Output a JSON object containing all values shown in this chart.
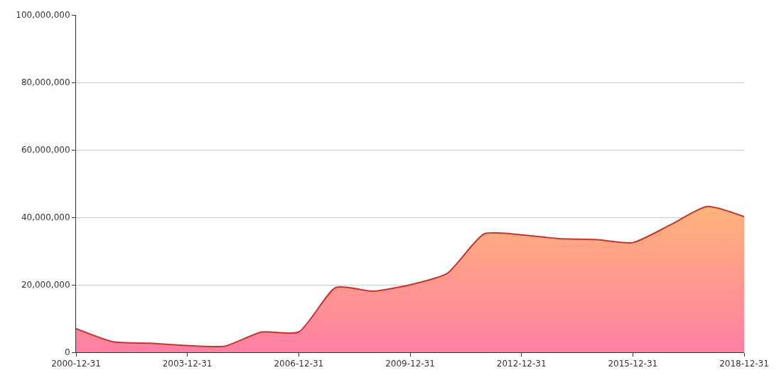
{
  "chart_data": {
    "type": "area",
    "x": [
      "2000-12-31",
      "2001-12-31",
      "2002-12-31",
      "2003-12-31",
      "2004-12-31",
      "2005-12-31",
      "2006-12-31",
      "2007-12-31",
      "2008-12-31",
      "2009-12-31",
      "2010-12-31",
      "2011-12-31",
      "2012-12-31",
      "2013-12-31",
      "2014-12-31",
      "2015-12-31",
      "2016-12-31",
      "2017-12-31",
      "2018-12-31"
    ],
    "values": [
      7000000,
      3100000,
      2700000,
      2000000,
      1800000,
      6000000,
      6000000,
      19200000,
      18100000,
      20000000,
      23400000,
      35100000,
      34800000,
      33700000,
      33400000,
      32500000,
      37700000,
      43200000,
      40200000
    ],
    "color": "#c23531",
    "xlim": [
      "2000-12-31",
      "2018-12-31"
    ],
    "xticks": [
      "2000-12-31",
      "2003-12-31",
      "2006-12-31",
      "2009-12-31",
      "2012-12-31",
      "2015-12-31",
      "2018-12-31"
    ],
    "ylim": [
      0,
      100000000
    ],
    "yticks": [
      {
        "value": 0,
        "label": "0"
      },
      {
        "value": 20000000,
        "label": "20,000,000"
      },
      {
        "value": 40000000,
        "label": "40,000,000"
      },
      {
        "value": 60000000,
        "label": "60,000,000"
      },
      {
        "value": 80000000,
        "label": "80,000,000"
      },
      {
        "value": 100000000,
        "label": "100,000,000"
      }
    ],
    "grid": "y"
  }
}
